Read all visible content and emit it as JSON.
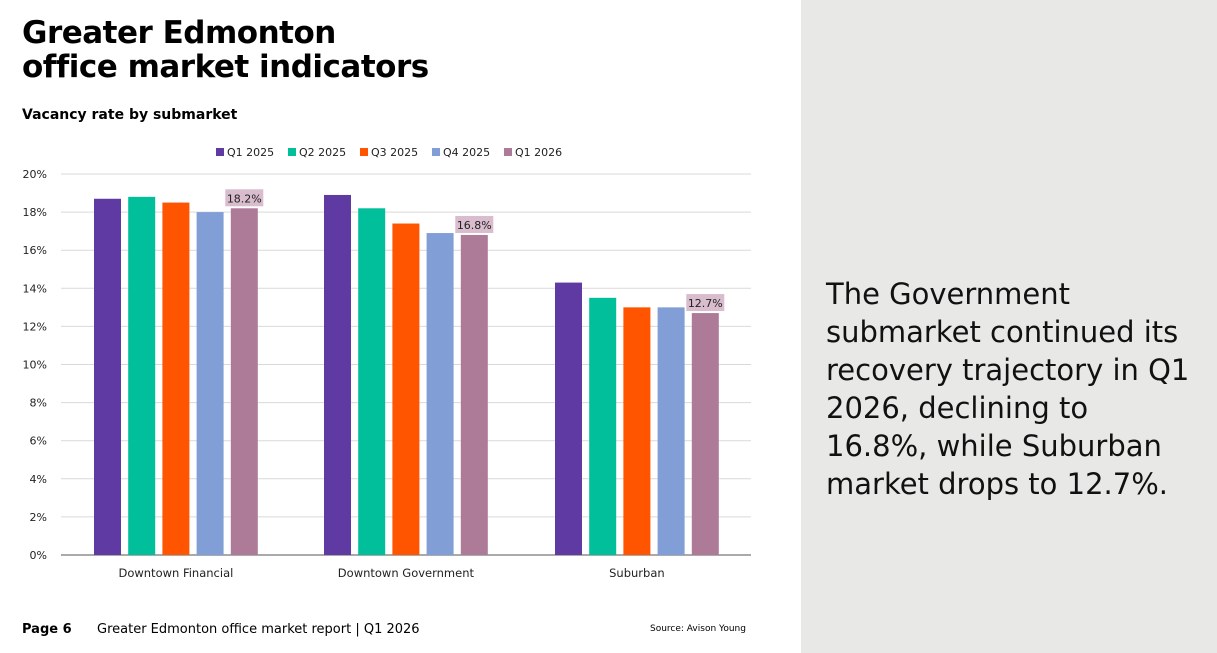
{
  "page": {
    "title_line1": "Greater Edmonton",
    "title_line2": "office market indicators",
    "subtitle": "Vacancy rate by submarket",
    "side_text": "The Government submarket continued its recovery trajectory in Q1 2026, declining to 16.8%, while Suburban market drops to 12.7%.",
    "footer": {
      "page_label": "Page 6",
      "report_label": "Greater Edmonton office market report | Q1 2026",
      "source": "Source: Avison Young"
    }
  },
  "chart_data": {
    "type": "bar",
    "title": "Vacancy rate by submarket",
    "categories": [
      "Downtown Financial",
      "Downtown Government",
      "Suburban"
    ],
    "series": [
      {
        "name": "Q1 2025",
        "color": "#5f3aa3",
        "values": [
          18.7,
          18.9,
          14.3
        ]
      },
      {
        "name": "Q2 2025",
        "color": "#00bf9a",
        "values": [
          18.8,
          18.2,
          13.5
        ]
      },
      {
        "name": "Q3 2025",
        "color": "#ff5400",
        "values": [
          18.5,
          17.4,
          13.0
        ]
      },
      {
        "name": "Q4 2025",
        "color": "#829ed6",
        "values": [
          18.0,
          16.9,
          13.0
        ]
      },
      {
        "name": "Q1 2026",
        "color": "#ad7a98",
        "values": [
          18.2,
          16.8,
          12.7
        ]
      }
    ],
    "data_labels": {
      "series": "Q1 2026",
      "labels": [
        "18.2%",
        "16.8%",
        "12.7%"
      ],
      "background": "#d9bccd"
    },
    "y_ticks": [
      "0%",
      "2%",
      "4%",
      "6%",
      "8%",
      "10%",
      "12%",
      "14%",
      "16%",
      "18%",
      "20%"
    ],
    "ylim": [
      0,
      20
    ],
    "grid": true,
    "legend_position": "top"
  }
}
